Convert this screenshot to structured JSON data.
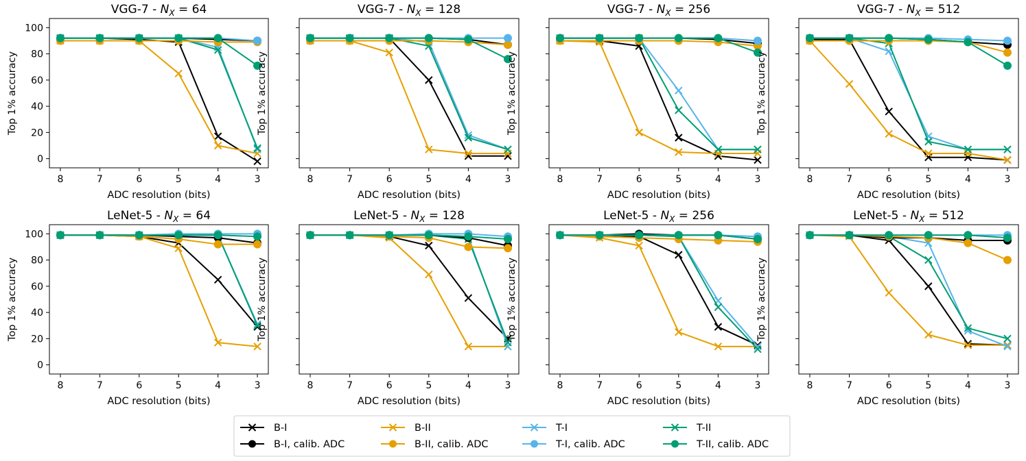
{
  "figure": {
    "xlabel": "ADC resolution (bits)",
    "ylabel": "Top 1% accuracy",
    "x_ticks": [
      8,
      7,
      6,
      5,
      4,
      3
    ],
    "y_ticks": [
      0,
      20,
      40,
      60,
      80,
      100
    ]
  },
  "legend_entries": [
    {
      "label": "B-I",
      "color": "#000000",
      "marker": "x"
    },
    {
      "label": "B-II",
      "color": "#E69F00",
      "marker": "x"
    },
    {
      "label": "T-I",
      "color": "#56B4E9",
      "marker": "x"
    },
    {
      "label": "T-II",
      "color": "#009E73",
      "marker": "x"
    },
    {
      "label": "B-I, calib. ADC",
      "color": "#000000",
      "marker": "o"
    },
    {
      "label": "B-II, calib. ADC",
      "color": "#E69F00",
      "marker": "o"
    },
    {
      "label": "T-I, calib. ADC",
      "color": "#56B4E9",
      "marker": "o"
    },
    {
      "label": "T-II, calib. ADC",
      "color": "#009E73",
      "marker": "o"
    }
  ],
  "chart_data": [
    {
      "type": "line",
      "title_prefix": "VGG-7 - ",
      "nx": "64",
      "x": [
        8,
        7,
        6,
        5,
        4,
        3
      ],
      "ylim": [
        -7,
        107
      ],
      "series": [
        {
          "name": "B-I",
          "values": [
            92,
            92,
            91,
            89,
            17,
            -2
          ]
        },
        {
          "name": "B-II",
          "values": [
            90,
            90,
            90,
            65,
            10,
            4
          ]
        },
        {
          "name": "T-I",
          "values": [
            92,
            92,
            92,
            92,
            85,
            7
          ]
        },
        {
          "name": "T-II",
          "values": [
            92,
            92,
            92,
            92,
            83,
            8
          ]
        },
        {
          "name": "B-I, calib. ADC",
          "values": [
            92,
            92,
            92,
            92,
            91,
            90
          ]
        },
        {
          "name": "B-II, calib. ADC",
          "values": [
            90,
            90,
            90,
            90,
            89,
            89
          ]
        },
        {
          "name": "T-I, calib. ADC",
          "values": [
            92,
            92,
            92,
            92,
            92,
            90
          ]
        },
        {
          "name": "T-II, calib. ADC",
          "values": [
            92,
            92,
            92,
            92,
            92,
            71
          ]
        }
      ]
    },
    {
      "type": "line",
      "title_prefix": "VGG-7 - ",
      "nx": "128",
      "x": [
        8,
        7,
        6,
        5,
        4,
        3
      ],
      "ylim": [
        -7,
        107
      ],
      "series": [
        {
          "name": "B-I",
          "values": [
            92,
            92,
            92,
            60,
            2,
            2
          ]
        },
        {
          "name": "B-II",
          "values": [
            90,
            90,
            81,
            7,
            4,
            4
          ]
        },
        {
          "name": "T-I",
          "values": [
            92,
            92,
            92,
            89,
            18,
            7
          ]
        },
        {
          "name": "T-II",
          "values": [
            92,
            92,
            92,
            86,
            16,
            7
          ]
        },
        {
          "name": "B-I, calib. ADC",
          "values": [
            92,
            92,
            92,
            92,
            91,
            87
          ]
        },
        {
          "name": "B-II, calib. ADC",
          "values": [
            90,
            90,
            90,
            90,
            89,
            87
          ]
        },
        {
          "name": "T-I, calib. ADC",
          "values": [
            92,
            92,
            92,
            92,
            92,
            92
          ]
        },
        {
          "name": "T-II, calib. ADC",
          "values": [
            92,
            92,
            92,
            92,
            91,
            76
          ]
        }
      ]
    },
    {
      "type": "line",
      "title_prefix": "VGG-7 - ",
      "nx": "256",
      "x": [
        8,
        7,
        6,
        5,
        4,
        3
      ],
      "ylim": [
        -7,
        107
      ],
      "series": [
        {
          "name": "B-I",
          "values": [
            90,
            90,
            86,
            16,
            2,
            -1
          ]
        },
        {
          "name": "B-II",
          "values": [
            90,
            89,
            20,
            5,
            4,
            4
          ]
        },
        {
          "name": "T-I",
          "values": [
            92,
            92,
            92,
            52,
            7,
            7
          ]
        },
        {
          "name": "T-II",
          "values": [
            92,
            92,
            92,
            37,
            7,
            7
          ]
        },
        {
          "name": "B-I, calib. ADC",
          "values": [
            92,
            92,
            92,
            92,
            91,
            88
          ]
        },
        {
          "name": "B-II, calib. ADC",
          "values": [
            90,
            90,
            90,
            90,
            89,
            86
          ]
        },
        {
          "name": "T-I, calib. ADC",
          "values": [
            92,
            92,
            92,
            92,
            92,
            90
          ]
        },
        {
          "name": "T-II, calib. ADC",
          "values": [
            92,
            92,
            92,
            92,
            92,
            81
          ]
        }
      ]
    },
    {
      "type": "line",
      "title_prefix": "VGG-7 - ",
      "nx": "512",
      "x": [
        8,
        7,
        6,
        5,
        4,
        3
      ],
      "ylim": [
        -7,
        107
      ],
      "series": [
        {
          "name": "B-I",
          "values": [
            91,
            91,
            36,
            1,
            1,
            -1
          ]
        },
        {
          "name": "B-II",
          "values": [
            90,
            57,
            19,
            4,
            4,
            -1
          ]
        },
        {
          "name": "T-I",
          "values": [
            92,
            92,
            82,
            17,
            7,
            7
          ]
        },
        {
          "name": "T-II",
          "values": [
            92,
            92,
            88,
            13,
            7,
            7
          ]
        },
        {
          "name": "B-I, calib. ADC",
          "values": [
            92,
            92,
            92,
            91,
            89,
            87
          ]
        },
        {
          "name": "B-II, calib. ADC",
          "values": [
            90,
            90,
            90,
            90,
            89,
            81
          ]
        },
        {
          "name": "T-I, calib. ADC",
          "values": [
            92,
            92,
            92,
            92,
            91,
            90
          ]
        },
        {
          "name": "T-II, calib. ADC",
          "values": [
            92,
            92,
            92,
            91,
            89,
            71
          ]
        }
      ]
    },
    {
      "type": "line",
      "title_prefix": "LeNet-5 - ",
      "nx": "64",
      "x": [
        8,
        7,
        6,
        5,
        4,
        3
      ],
      "ylim": [
        -7,
        107
      ],
      "series": [
        {
          "name": "B-I",
          "values": [
            99,
            99,
            98,
            93,
            65,
            29
          ]
        },
        {
          "name": "B-II",
          "values": [
            99,
            99,
            98,
            89,
            17,
            14
          ]
        },
        {
          "name": "T-I",
          "values": [
            99,
            99,
            99,
            99,
            99,
            31
          ]
        },
        {
          "name": "T-II",
          "values": [
            99,
            99,
            99,
            99,
            99,
            30
          ]
        },
        {
          "name": "B-I, calib. ADC",
          "values": [
            99,
            99,
            99,
            98,
            97,
            93
          ]
        },
        {
          "name": "B-II, calib. ADC",
          "values": [
            99,
            99,
            98,
            96,
            92,
            92
          ]
        },
        {
          "name": "T-I, calib. ADC",
          "values": [
            99,
            99,
            99,
            100,
            100,
            100
          ]
        },
        {
          "name": "T-II, calib. ADC",
          "values": [
            99,
            99,
            99,
            99,
            99,
            98
          ]
        }
      ]
    },
    {
      "type": "line",
      "title_prefix": "LeNet-5 - ",
      "nx": "128",
      "x": [
        8,
        7,
        6,
        5,
        4,
        3
      ],
      "ylim": [
        -7,
        107
      ],
      "series": [
        {
          "name": "B-I",
          "values": [
            99,
            99,
            98,
            91,
            51,
            20
          ]
        },
        {
          "name": "B-II",
          "values": [
            99,
            99,
            97,
            69,
            14,
            14
          ]
        },
        {
          "name": "T-I",
          "values": [
            99,
            99,
            99,
            99,
            98,
            14
          ]
        },
        {
          "name": "T-II",
          "values": [
            99,
            99,
            99,
            99,
            96,
            17
          ]
        },
        {
          "name": "B-I, calib. ADC",
          "values": [
            99,
            99,
            99,
            99,
            97,
            91
          ]
        },
        {
          "name": "B-II, calib. ADC",
          "values": [
            99,
            99,
            98,
            97,
            90,
            89
          ]
        },
        {
          "name": "T-I, calib. ADC",
          "values": [
            99,
            99,
            99,
            100,
            100,
            98
          ]
        },
        {
          "name": "T-II, calib. ADC",
          "values": [
            99,
            99,
            99,
            99,
            98,
            96
          ]
        }
      ]
    },
    {
      "type": "line",
      "title_prefix": "LeNet-5 - ",
      "nx": "256",
      "x": [
        8,
        7,
        6,
        5,
        4,
        3
      ],
      "ylim": [
        -7,
        107
      ],
      "series": [
        {
          "name": "B-I",
          "values": [
            99,
            99,
            98,
            84,
            29,
            15
          ]
        },
        {
          "name": "B-II",
          "values": [
            99,
            97,
            91,
            25,
            14,
            14
          ]
        },
        {
          "name": "T-I",
          "values": [
            99,
            99,
            99,
            98,
            49,
            14
          ]
        },
        {
          "name": "T-II",
          "values": [
            99,
            99,
            99,
            98,
            44,
            12
          ]
        },
        {
          "name": "B-I, calib. ADC",
          "values": [
            99,
            99,
            100,
            99,
            99,
            96
          ]
        },
        {
          "name": "B-II, calib. ADC",
          "values": [
            99,
            98,
            97,
            96,
            95,
            94
          ]
        },
        {
          "name": "T-I, calib. ADC",
          "values": [
            99,
            99,
            99,
            99,
            99,
            98
          ]
        },
        {
          "name": "T-II, calib. ADC",
          "values": [
            99,
            99,
            99,
            99,
            99,
            96
          ]
        }
      ]
    },
    {
      "type": "line",
      "title_prefix": "LeNet-5 - ",
      "nx": "512",
      "x": [
        8,
        7,
        6,
        5,
        4,
        3
      ],
      "ylim": [
        -7,
        107
      ],
      "series": [
        {
          "name": "B-I",
          "values": [
            99,
            99,
            95,
            60,
            16,
            15
          ]
        },
        {
          "name": "B-II",
          "values": [
            99,
            98,
            55,
            23,
            15,
            15
          ]
        },
        {
          "name": "T-I",
          "values": [
            99,
            99,
            98,
            93,
            26,
            14
          ]
        },
        {
          "name": "T-II",
          "values": [
            99,
            99,
            98,
            80,
            28,
            20
          ]
        },
        {
          "name": "B-I, calib. ADC",
          "values": [
            99,
            99,
            97,
            97,
            95,
            95
          ]
        },
        {
          "name": "B-II, calib. ADC",
          "values": [
            99,
            99,
            98,
            97,
            93,
            80
          ]
        },
        {
          "name": "T-I, calib. ADC",
          "values": [
            99,
            99,
            99,
            99,
            99,
            99
          ]
        },
        {
          "name": "T-II, calib. ADC",
          "values": [
            99,
            99,
            99,
            99,
            99,
            97
          ]
        }
      ]
    }
  ]
}
